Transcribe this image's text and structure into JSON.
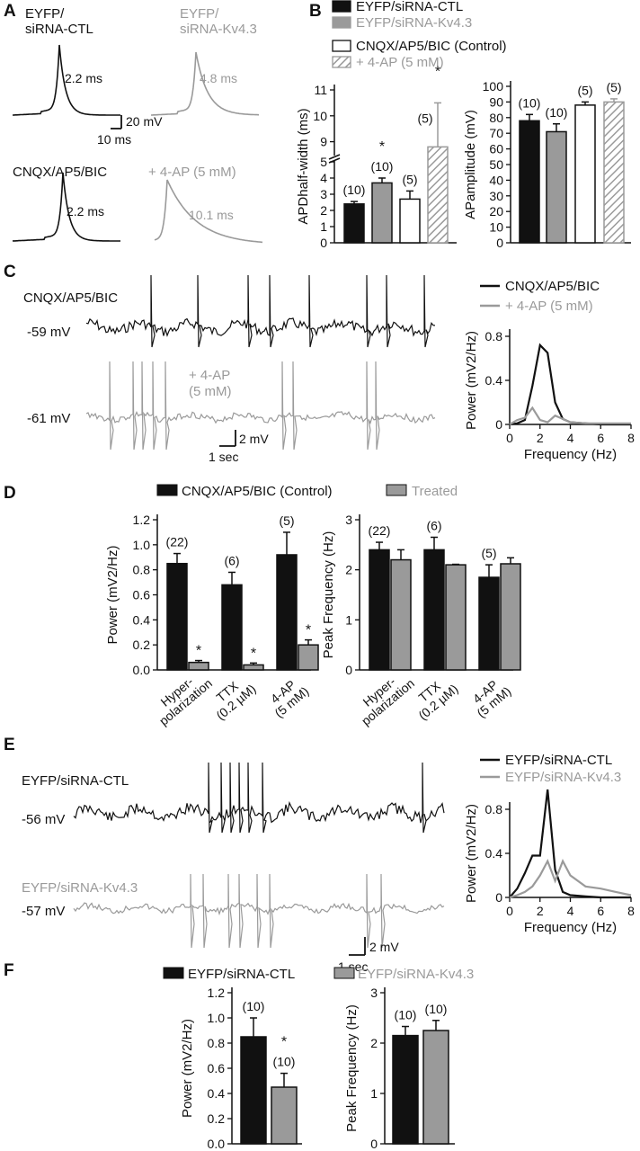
{
  "colors": {
    "black": "#111111",
    "gray": "#9a9a9a",
    "white": "#ffffff"
  },
  "panels": {
    "A": "A",
    "B": "B",
    "C": "C",
    "D": "D",
    "E": "E",
    "F": "F"
  },
  "panel_a": {
    "labels": {
      "ctl": "EYFP/\nsiRNA-CTL",
      "kv": "EYFP/\nsiRNA-Kv4.3",
      "cnqx": "CNQX/AP5/BIC",
      "fourap": "+ 4-AP (5 mM)"
    },
    "half_widths": {
      "ctl": "2.2 ms",
      "kv": "4.8 ms",
      "cnqx": "2.2 ms",
      "fourap": "10.1 ms"
    },
    "scale": {
      "v": "20 mV",
      "t": "10 ms"
    }
  },
  "panel_b_legend": [
    "EYFP/siRNA-CTL",
    "EYFP/siRNA-Kv4.3",
    "CNQX/AP5/BIC (Control)",
    "+ 4-AP (5 mM)"
  ],
  "panel_c": {
    "traces": {
      "top": "CNQX/AP5/BIC",
      "top_v": "-59 mV",
      "bottom": "+ 4-AP\n(5 mM)",
      "bottom_v": "-61 mV"
    },
    "scale": {
      "v": "2 mV",
      "t": "1 sec"
    },
    "legend": [
      "CNQX/AP5/BIC",
      "+ 4-AP (5 mM)"
    ]
  },
  "panel_d_legend": [
    "CNQX/AP5/BIC (Control)",
    "Treated"
  ],
  "panel_e": {
    "traces": {
      "top": "EYFP/siRNA-CTL",
      "top_v": "-56 mV",
      "bottom": "EYFP/siRNA-Kv4.3",
      "bottom_v": "-57 mV"
    },
    "scale": {
      "v": "2 mV",
      "t": "1 sec"
    },
    "legend": [
      "EYFP/siRNA-CTL",
      "EYFP/siRNA-Kv4.3"
    ]
  },
  "panel_f_legend": [
    "EYFP/siRNA-CTL",
    "EYFP/siRNA-Kv4.3"
  ],
  "chart_data": [
    {
      "id": "B1",
      "type": "bar",
      "ylabel": "APDhalf-width (ms)",
      "yticks": [
        0,
        1,
        2,
        3,
        4,
        5,
        9,
        10,
        11
      ],
      "axis_break": [
        5,
        8.5
      ],
      "categories": [
        "EYFP/siRNA-CTL",
        "EYFP/siRNA-Kv4.3",
        "CNQX/AP5/BIC (Control)",
        "+ 4-AP (5 mM)"
      ],
      "values": [
        2.4,
        3.7,
        2.7,
        8.8
      ],
      "errors": [
        0.15,
        0.3,
        0.5,
        1.7
      ],
      "n_labels": [
        "(10)",
        "(10)",
        "(5)",
        "(5)"
      ],
      "significance": [
        "",
        "*",
        "",
        "*"
      ]
    },
    {
      "id": "B2",
      "type": "bar",
      "ylabel": "APamplitude (mV)",
      "ylim": [
        0,
        100
      ],
      "yticks": [
        0,
        10,
        20,
        30,
        40,
        50,
        60,
        70,
        80,
        90,
        100
      ],
      "categories": [
        "EYFP/siRNA-CTL",
        "EYFP/siRNA-Kv4.3",
        "CNQX/AP5/BIC (Control)",
        "+ 4-AP (5 mM)"
      ],
      "values": [
        78,
        71,
        88,
        90
      ],
      "errors": [
        4,
        5,
        2,
        2
      ],
      "n_labels": [
        "(10)",
        "(10)",
        "(5)",
        "(5)"
      ]
    },
    {
      "id": "C_spec",
      "type": "line",
      "xlabel": "Frequency (Hz)",
      "ylabel": "Power (mV2/Hz)",
      "xlim": [
        0,
        8
      ],
      "ylim": [
        0,
        0.8
      ],
      "xticks": [
        0,
        2,
        4,
        6,
        8
      ],
      "yticks": [
        0,
        0.4,
        0.8
      ],
      "series": [
        {
          "name": "CNQX/AP5/BIC",
          "x": [
            0,
            0.5,
            1,
            1.5,
            2,
            2.5,
            3,
            3.5,
            4,
            5,
            6,
            7,
            8
          ],
          "y": [
            0,
            0.01,
            0.04,
            0.35,
            0.72,
            0.65,
            0.2,
            0.05,
            0.02,
            0.01,
            0,
            0,
            0
          ]
        },
        {
          "name": "+ 4-AP (5 mM)",
          "x": [
            0,
            0.5,
            1,
            1.5,
            2,
            2.5,
            3,
            3.5,
            4,
            5,
            6,
            7,
            8
          ],
          "y": [
            0,
            0.04,
            0.06,
            0.15,
            0.04,
            0.02,
            0.08,
            0.05,
            0.02,
            0.01,
            0.01,
            0.01,
            0.01
          ]
        }
      ]
    },
    {
      "id": "D1",
      "type": "bar",
      "ylabel": "Power (mV2/Hz)",
      "ylim": [
        0,
        1.2
      ],
      "yticks": [
        0,
        0.2,
        0.4,
        0.6,
        0.8,
        1.0,
        1.2
      ],
      "categories": [
        "Hyper-\npolarization",
        "TTX\n(0.2 µM)",
        "4-AP\n(5 mM)"
      ],
      "series": [
        {
          "name": "CNQX/AP5/BIC (Control)",
          "values": [
            0.85,
            0.68,
            0.92
          ],
          "errors": [
            0.08,
            0.1,
            0.18
          ]
        },
        {
          "name": "Treated",
          "values": [
            0.06,
            0.04,
            0.2
          ],
          "errors": [
            0.015,
            0.015,
            0.04
          ]
        }
      ],
      "n_labels": [
        "(22)",
        "(6)",
        "(5)"
      ],
      "significance": [
        "*",
        "*",
        "*"
      ]
    },
    {
      "id": "D2",
      "type": "bar",
      "ylabel": "Peak Frequency (Hz)",
      "ylim": [
        0,
        3
      ],
      "yticks": [
        0,
        1,
        2,
        3
      ],
      "categories": [
        "Hyper-\npolarization",
        "TTX\n(0.2 µM)",
        "4-AP\n(5 mM)"
      ],
      "series": [
        {
          "name": "CNQX/AP5/BIC (Control)",
          "values": [
            2.4,
            2.4,
            1.85
          ],
          "errors": [
            0.15,
            0.25,
            0.25
          ]
        },
        {
          "name": "Treated",
          "values": [
            2.2,
            2.1,
            2.12
          ],
          "errors": [
            0.2,
            0.01,
            0.12
          ]
        }
      ],
      "n_labels": [
        "(22)",
        "(6)",
        "(5)"
      ]
    },
    {
      "id": "E_spec",
      "type": "line",
      "xlabel": "Frequency (Hz)",
      "ylabel": "Power (mV2/Hz)",
      "xlim": [
        0,
        8
      ],
      "ylim": [
        0,
        0.8
      ],
      "xticks": [
        0,
        2,
        4,
        6,
        8
      ],
      "yticks": [
        0,
        0.4,
        0.8
      ],
      "series": [
        {
          "name": "EYFP/siRNA-CTL",
          "x": [
            0,
            0.5,
            1,
            1.5,
            2,
            2.5,
            3,
            3.5,
            4,
            5,
            6,
            7,
            8
          ],
          "y": [
            0,
            0.08,
            0.22,
            0.38,
            0.38,
            0.98,
            0.25,
            0.05,
            0.02,
            0.01,
            0,
            0,
            0
          ]
        },
        {
          "name": "EYFP/siRNA-Kv4.3",
          "x": [
            0,
            0.5,
            1,
            1.5,
            2,
            2.5,
            3,
            3.5,
            4,
            5,
            6,
            7,
            8
          ],
          "y": [
            0,
            0.02,
            0.05,
            0.1,
            0.2,
            0.33,
            0.15,
            0.33,
            0.2,
            0.1,
            0.08,
            0.05,
            0.02
          ]
        }
      ]
    },
    {
      "id": "F1",
      "type": "bar",
      "ylabel": "Power (mV2/Hz)",
      "ylim": [
        0,
        1.2
      ],
      "yticks": [
        0,
        0.2,
        0.4,
        0.6,
        0.8,
        1.0,
        1.2
      ],
      "categories": [
        "EYFP/siRNA-CTL",
        "EYFP/siRNA-Kv4.3"
      ],
      "values": [
        0.85,
        0.45
      ],
      "errors": [
        0.15,
        0.11
      ],
      "n_labels": [
        "(10)",
        "(10)"
      ],
      "significance": [
        "",
        "*"
      ]
    },
    {
      "id": "F2",
      "type": "bar",
      "ylabel": "Peak Frequency (Hz)",
      "ylim": [
        0,
        3
      ],
      "yticks": [
        0,
        1,
        2,
        3
      ],
      "categories": [
        "EYFP/siRNA-CTL",
        "EYFP/siRNA-Kv4.3"
      ],
      "values": [
        2.15,
        2.25
      ],
      "errors": [
        0.18,
        0.2
      ],
      "n_labels": [
        "(10)",
        "(10)"
      ]
    }
  ]
}
